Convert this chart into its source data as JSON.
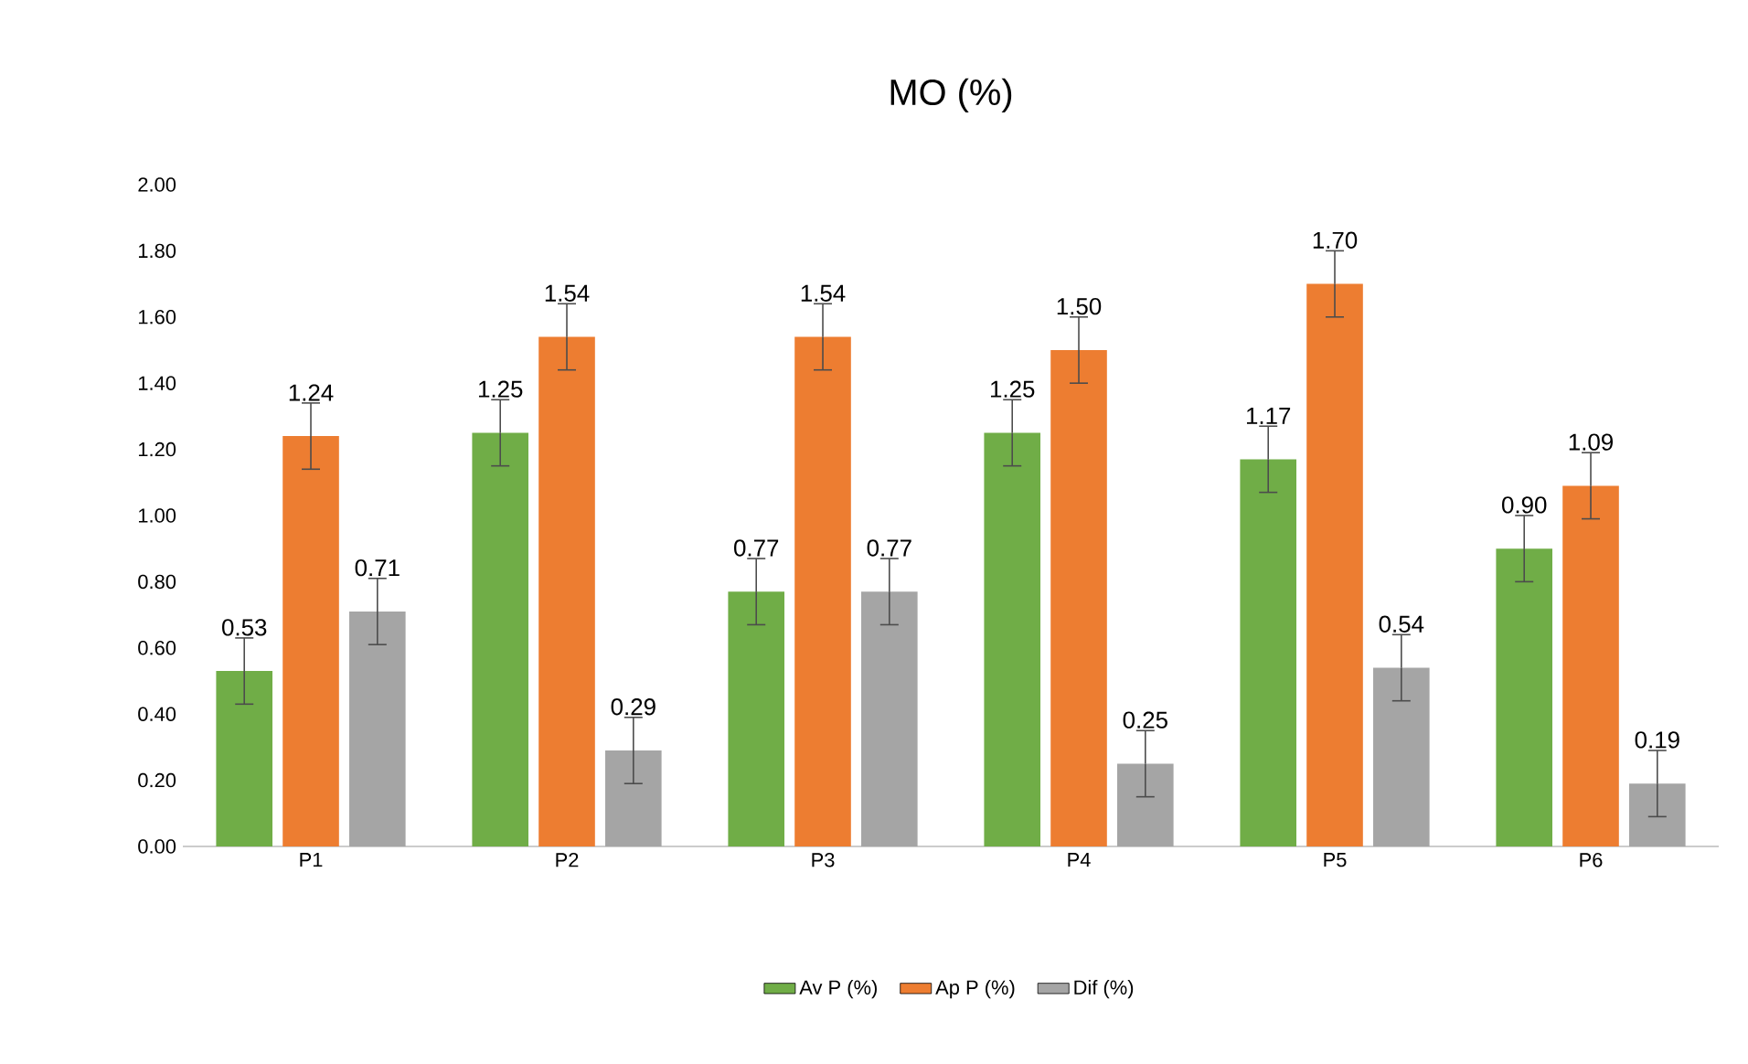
{
  "chart_data": {
    "type": "bar",
    "title": "MO (%)",
    "categories": [
      "P1",
      "P2",
      "P3",
      "P4",
      "P5",
      "P6"
    ],
    "series": [
      {
        "name": "Av P (%)",
        "color": "#70ad47",
        "values": [
          0.53,
          1.25,
          0.77,
          1.25,
          1.17,
          0.9
        ],
        "errors": [
          0.1,
          0.1,
          0.1,
          0.1,
          0.1,
          0.1
        ],
        "value_labels": [
          "0.53",
          "1.25",
          "0.77",
          "1.25",
          "1.17",
          "0.90"
        ]
      },
      {
        "name": "Ap P (%)",
        "color": "#ed7d31",
        "values": [
          1.24,
          1.54,
          1.54,
          1.5,
          1.7,
          1.09
        ],
        "errors": [
          0.1,
          0.1,
          0.1,
          0.1,
          0.1,
          0.1
        ],
        "value_labels": [
          "1.24",
          "1.54",
          "1.54",
          "1.50",
          "1.70",
          "1.09"
        ]
      },
      {
        "name": "Dif (%)",
        "color": "#a5a5a5",
        "values": [
          0.71,
          0.29,
          0.77,
          0.25,
          0.54,
          0.19
        ],
        "errors": [
          0.1,
          0.1,
          0.1,
          0.1,
          0.1,
          0.1
        ],
        "value_labels": [
          "0.71",
          "0.29",
          "0.77",
          "0.25",
          "0.54",
          "0.19"
        ]
      }
    ],
    "ylim": [
      0,
      2
    ],
    "yticks": [
      {
        "value": 0,
        "label": "0.00"
      },
      {
        "value": 0.2,
        "label": "0.20"
      },
      {
        "value": 0.4,
        "label": "0.40"
      },
      {
        "value": 0.6,
        "label": "0.60"
      },
      {
        "value": 0.8,
        "label": "0.80"
      },
      {
        "value": 1,
        "label": "1.00"
      },
      {
        "value": 1.2,
        "label": "1.20"
      },
      {
        "value": 1.4,
        "label": "1.40"
      },
      {
        "value": 1.6,
        "label": "1.60"
      },
      {
        "value": 1.8,
        "label": "1.80"
      },
      {
        "value": 2,
        "label": "2.00"
      }
    ],
    "grid": false,
    "legend": "bottom"
  }
}
